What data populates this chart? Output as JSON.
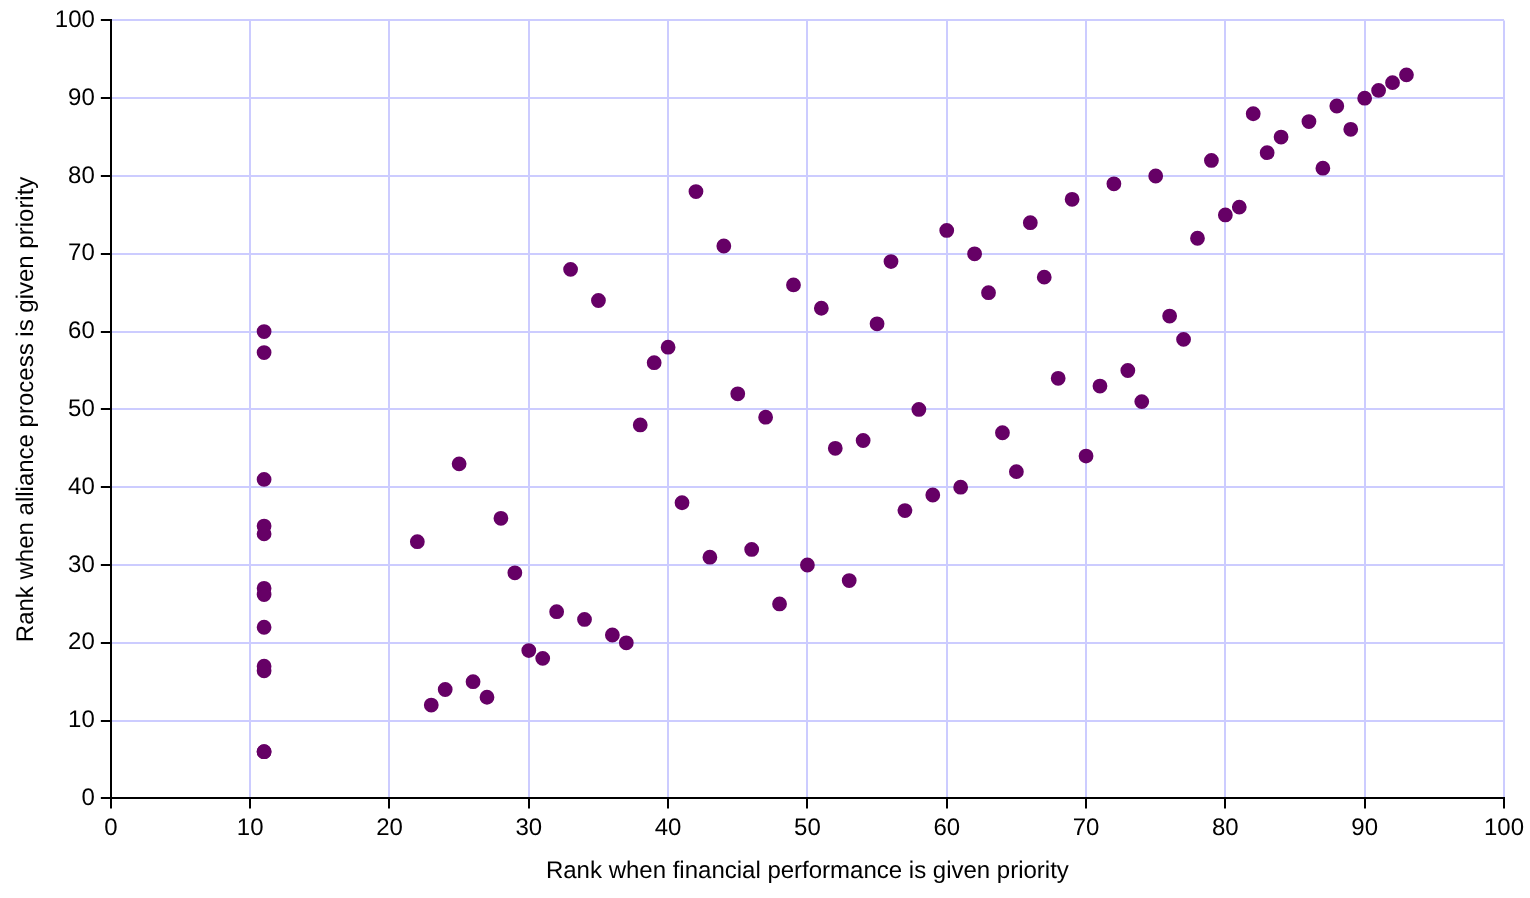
{
  "chart_data": {
    "type": "scatter",
    "xlabel": "Rank when financial performance is given priority",
    "ylabel": "Rank when alliance process is given priority",
    "x": [
      11,
      11,
      11,
      11,
      11,
      11,
      11,
      11,
      11,
      11,
      11,
      11,
      22,
      23,
      24,
      25,
      26,
      27,
      28,
      29,
      30,
      31,
      32,
      33,
      34,
      35,
      36,
      37,
      38,
      39,
      40,
      41,
      42,
      43,
      44,
      45,
      46,
      47,
      48,
      49,
      50,
      51,
      52,
      53,
      54,
      55,
      56,
      57,
      58,
      59,
      60,
      61,
      62,
      63,
      64,
      65,
      66,
      67,
      68,
      69,
      70,
      71,
      72,
      73,
      74,
      75,
      76,
      77,
      78,
      79,
      80,
      81,
      82,
      83,
      84,
      86,
      87,
      88,
      89,
      90,
      91,
      92,
      93
    ],
    "values": [
      60,
      57.3,
      41,
      35,
      34,
      27,
      26.2,
      22,
      17,
      16.4,
      6,
      6,
      33,
      12,
      14,
      43,
      15,
      13,
      36,
      29,
      19,
      18,
      24,
      68,
      23,
      64,
      21,
      20,
      48,
      56,
      58,
      38,
      78,
      31,
      71,
      52,
      32,
      49,
      25,
      66,
      30,
      63,
      45,
      28,
      46,
      61,
      69,
      37,
      50,
      39,
      73,
      40,
      70,
      65,
      47,
      42,
      74,
      67,
      54,
      77,
      44,
      53,
      79,
      55,
      51,
      80,
      62,
      59,
      72,
      82,
      75,
      76,
      88,
      83,
      85,
      87,
      81,
      89,
      86,
      90,
      91,
      92,
      93
    ],
    "color": "#660066",
    "marker": "circle",
    "xlim": [
      0,
      100
    ],
    "xticks": [
      0,
      10,
      20,
      30,
      40,
      50,
      60,
      70,
      80,
      90,
      100
    ],
    "ylim": [
      0,
      100
    ],
    "yticks": [
      0,
      10,
      20,
      30,
      40,
      50,
      60,
      70,
      80,
      90,
      100
    ],
    "grid": true,
    "legend": false
  }
}
